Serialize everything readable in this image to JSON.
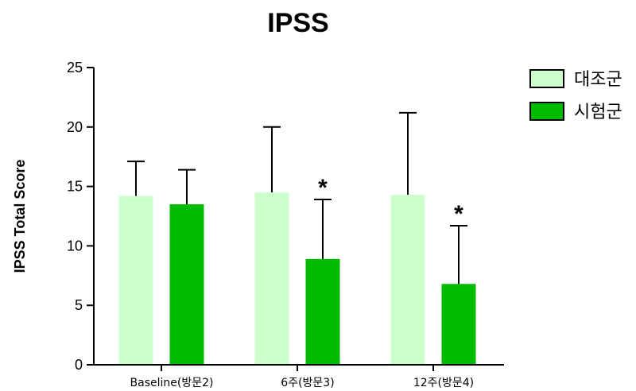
{
  "chart_data": {
    "type": "bar",
    "title": "IPSS",
    "xlabel": "",
    "ylabel": "IPSS Total Score",
    "ylim": [
      0,
      25
    ],
    "yticks": [
      0,
      5,
      10,
      15,
      20,
      25
    ],
    "categories": [
      "Baseline(방문2)",
      "6주(방문3)",
      "12주(방문4)"
    ],
    "series": [
      {
        "name": "대조군",
        "color": "#ccffcc",
        "values": [
          14.2,
          14.5,
          14.3
        ],
        "error_upper": [
          17.1,
          20.0,
          21.2
        ]
      },
      {
        "name": "시험군",
        "color": "#00bb00",
        "values": [
          13.5,
          8.9,
          6.8
        ],
        "error_upper": [
          16.4,
          13.9,
          11.7
        ]
      }
    ],
    "significance": [
      {
        "category_index": 1,
        "series_index": 1,
        "label": "*"
      },
      {
        "category_index": 2,
        "series_index": 1,
        "label": "*"
      }
    ],
    "legend_position": "top-right",
    "grid": false
  }
}
